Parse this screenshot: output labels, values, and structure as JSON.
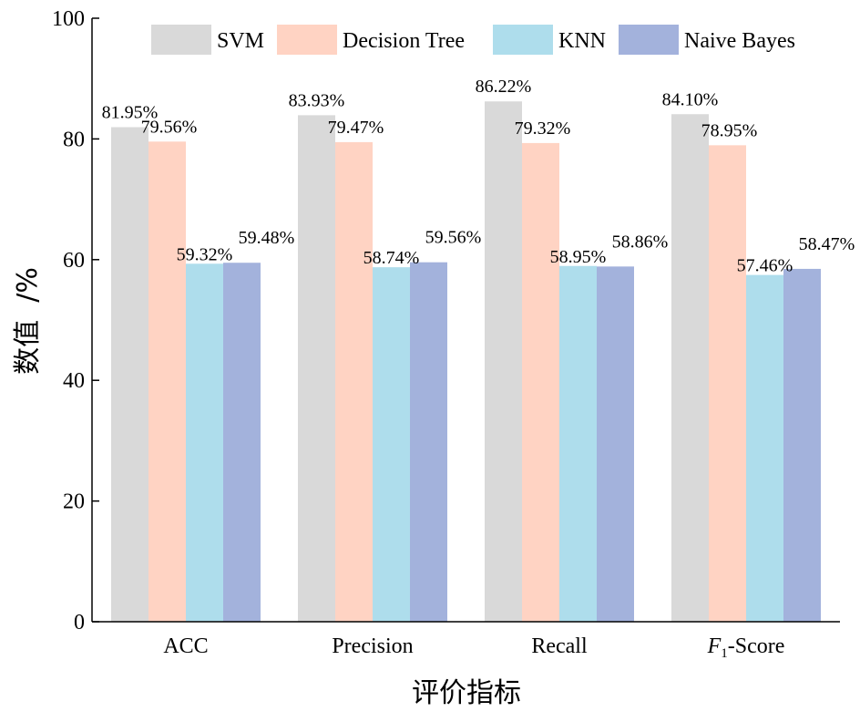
{
  "chart_data": {
    "type": "bar",
    "categories": [
      "ACC",
      "Precision",
      "Recall",
      "Score"
    ],
    "category_prefix_italic": [
      "",
      "",
      "",
      "F"
    ],
    "category_subscript": [
      "",
      "",
      "",
      "1"
    ],
    "category_prefix_joiner": [
      "",
      "",
      "",
      "-"
    ],
    "xlabel": "评价指标",
    "ylabel": "数值  /%",
    "ylim": [
      0,
      100
    ],
    "yticks": [
      0,
      20,
      40,
      60,
      80,
      100
    ],
    "grid": false,
    "legend_position": "top",
    "series": [
      {
        "name": "SVM",
        "color": "#d9d9d9",
        "values": [
          81.95,
          83.93,
          86.22,
          84.1
        ],
        "labels": [
          "81.95%",
          "83.93%",
          "86.22%",
          "84.10%"
        ]
      },
      {
        "name": "Decision Tree",
        "color": "#ffd3c3",
        "values": [
          79.56,
          79.47,
          79.32,
          78.95
        ],
        "labels": [
          "79.56%",
          "79.47%",
          "79.32%",
          "78.95%"
        ]
      },
      {
        "name": "KNN",
        "color": "#aeddec",
        "values": [
          59.32,
          58.74,
          58.95,
          57.46
        ],
        "labels": [
          "59.32%",
          "58.74%",
          "58.95%",
          "57.46%"
        ]
      },
      {
        "name": "Naive Bayes",
        "color": "#a3b2dc",
        "values": [
          59.48,
          59.56,
          58.86,
          58.47
        ],
        "labels": [
          "59.48%",
          "59.56%",
          "58.86%",
          "58.47%"
        ]
      }
    ]
  }
}
